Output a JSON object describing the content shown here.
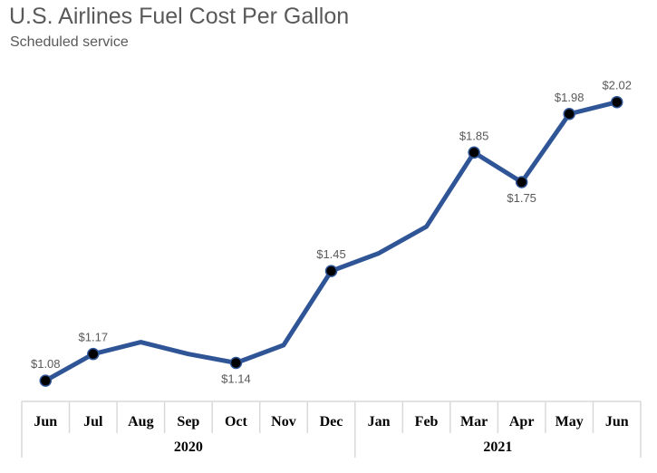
{
  "chart_data": {
    "type": "line",
    "title": "U.S. Airlines Fuel Cost Per Gallon",
    "subtitle": "Scheduled service",
    "categories": [
      "Jun",
      "Jul",
      "Aug",
      "Sep",
      "Oct",
      "Nov",
      "Dec",
      "Jan",
      "Feb",
      "Mar",
      "Apr",
      "May",
      "Jun"
    ],
    "groups": [
      {
        "label": "2020",
        "span": 7
      },
      {
        "label": "2021",
        "span": 6
      }
    ],
    "series": [
      {
        "values": [
          1.08,
          1.17,
          1.21,
          1.17,
          1.14,
          1.2,
          1.45,
          1.51,
          1.6,
          1.85,
          1.75,
          1.98,
          2.02
        ]
      }
    ],
    "data_labels": [
      "$1.08",
      "$1.17",
      null,
      null,
      "$1.14",
      null,
      "$1.45",
      null,
      null,
      "$1.85",
      "$1.75",
      "$1.98",
      "$2.02"
    ],
    "label_below": [
      false,
      false,
      false,
      false,
      true,
      false,
      false,
      false,
      false,
      false,
      true,
      false,
      false
    ],
    "ylim": [
      1.01,
      2.12
    ],
    "grid": false,
    "line_color": "#2F5597",
    "marker_color": "#000000"
  }
}
